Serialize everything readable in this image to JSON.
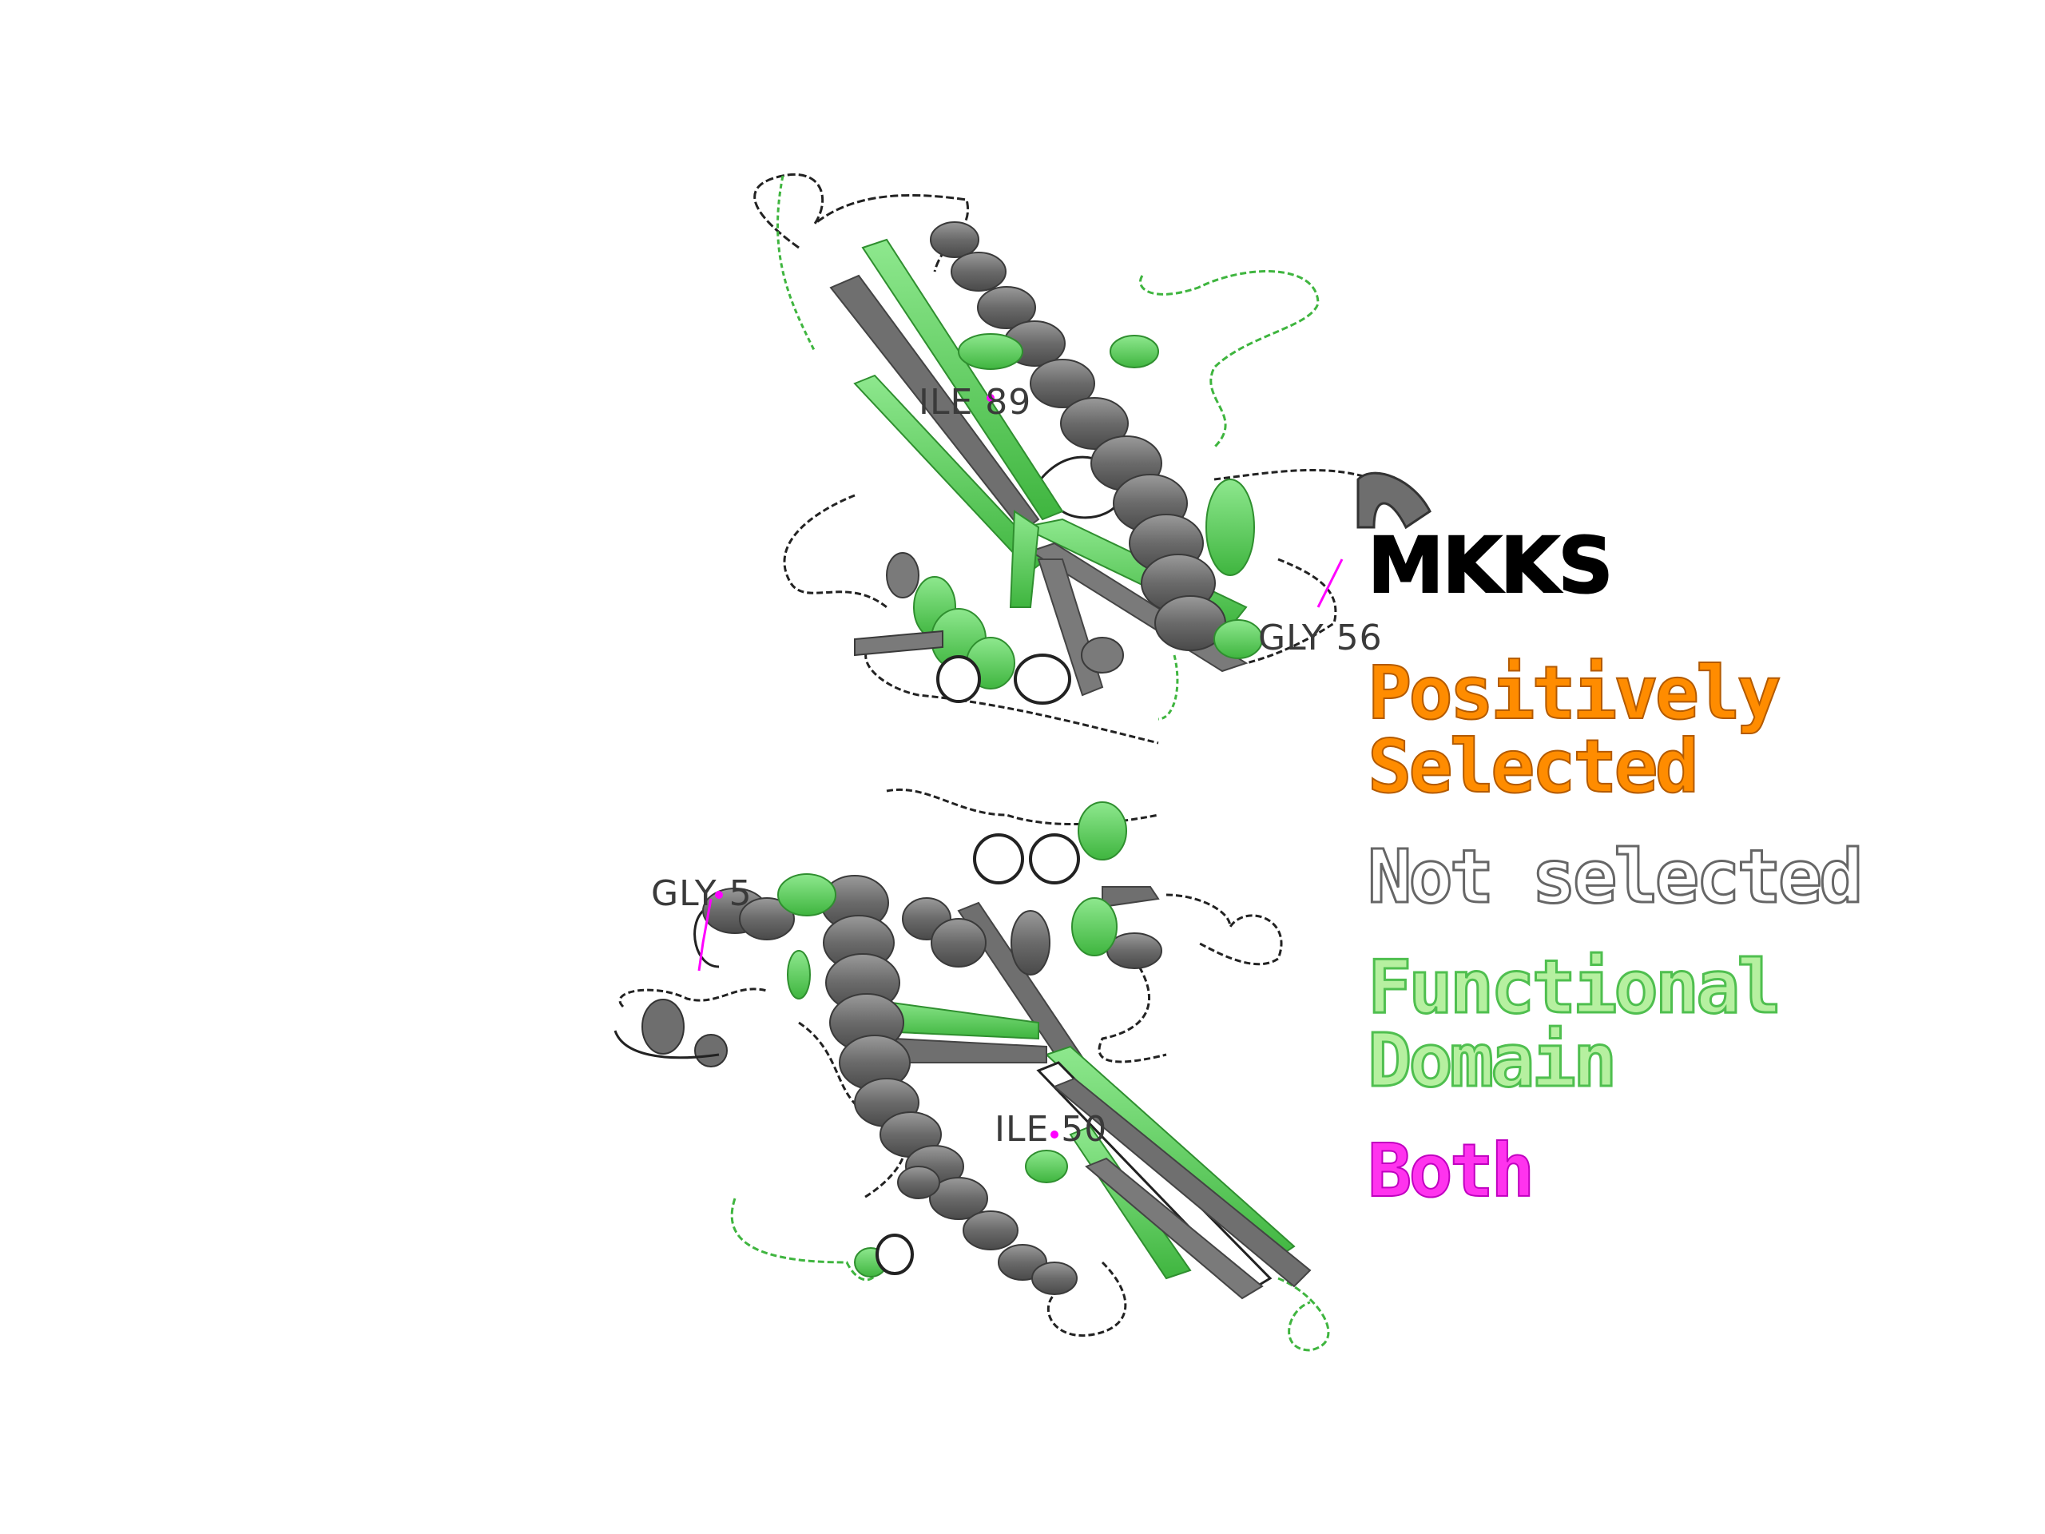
{
  "legend": {
    "title": "MKKS",
    "items": [
      {
        "label": "Positively Selected",
        "color": "#ff8c00"
      },
      {
        "label": "Not selected",
        "color": "#808080"
      },
      {
        "label": "Functional Domain",
        "color": "#5fd35f"
      },
      {
        "label": "Both",
        "color": "#ff00ff"
      }
    ]
  },
  "residue_labels": {
    "top_1": "ILE 89",
    "top_2": "GLY 56",
    "bottom_1": "GLY 5",
    "bottom_2": "ILE 50"
  },
  "colors": {
    "helix": "#6e6e6e",
    "sheet_gray": "#7a7a7a",
    "domain_green": "#5fd35f",
    "loop": "#222222",
    "both_marker": "#ff00ff"
  }
}
